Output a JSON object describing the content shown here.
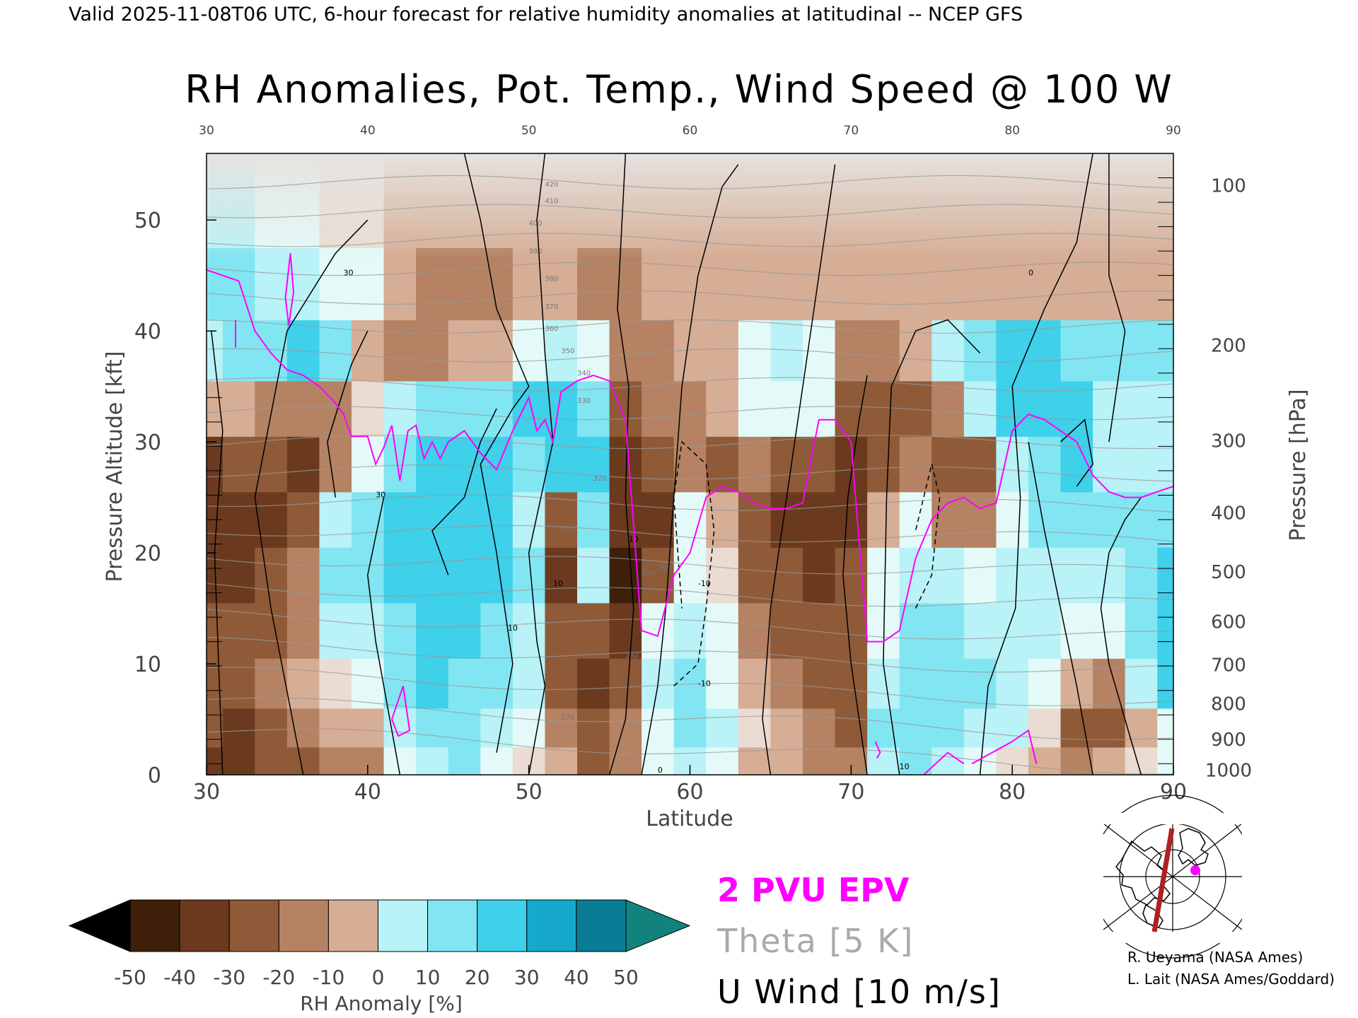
{
  "header": {
    "valid_line": "Valid 2025-11-08T06 UTC, 6-hour forecast for relative humidity anomalies at latitudinal -- NCEP GFS",
    "title": "RH Anomalies, Pot. Temp., Wind Speed @ 100 W"
  },
  "chart_data": {
    "type": "heatmap",
    "title": "RH Anomalies, Pot. Temp., Wind Speed @ 100 W",
    "xlabel": "Latitude",
    "ylabel_left": "Pressure Altitude [kft]",
    "ylabel_right": "Pressure [hPa]",
    "xlim": [
      30,
      90
    ],
    "ylim": [
      0,
      56
    ],
    "x_ticks_bottom": [
      30,
      40,
      50,
      60,
      70,
      80,
      90
    ],
    "x_ticks_top": [
      30,
      40,
      50,
      60,
      70,
      80,
      90
    ],
    "y_ticks_left": [
      0,
      10,
      20,
      30,
      40,
      50
    ],
    "y_ticks_right": [
      {
        "label": "100",
        "kft": 53.1
      },
      {
        "label": "200",
        "kft": 38.7
      },
      {
        "label": "300",
        "kft": 30.1
      },
      {
        "label": "400",
        "kft": 23.6
      },
      {
        "label": "500",
        "kft": 18.3
      },
      {
        "label": "600",
        "kft": 13.8
      },
      {
        "label": "700",
        "kft": 9.9
      },
      {
        "label": "800",
        "kft": 6.4
      },
      {
        "label": "900",
        "kft": 3.2
      },
      {
        "label": "1000",
        "kft": 0.4
      }
    ],
    "grid": false,
    "rh_anomaly_cells": {
      "lats": [
        30,
        32,
        34,
        36,
        38,
        40,
        42,
        44,
        46,
        48,
        50,
        52,
        54,
        56,
        58,
        60,
        62,
        64,
        66,
        68,
        70,
        72,
        74,
        76,
        78,
        80,
        82,
        84,
        86,
        88,
        90
      ],
      "levels_kft": [
        1,
        4,
        8,
        13,
        18,
        23,
        28,
        33,
        38,
        44,
        51
      ],
      "values_percent": [
        [
          -35,
          -38,
          -30,
          -25,
          -20,
          -15,
          10,
          25,
          30,
          15,
          5,
          -10,
          -25,
          -15,
          10,
          20,
          15,
          -5,
          -10,
          -15,
          -20,
          25,
          30,
          20,
          10,
          5,
          -5,
          -20,
          -10,
          5,
          10
        ],
        [
          -30,
          -35,
          -25,
          -15,
          -10,
          -5,
          20,
          35,
          35,
          25,
          15,
          -20,
          -30,
          -20,
          15,
          30,
          20,
          5,
          -5,
          -20,
          -25,
          30,
          35,
          30,
          25,
          20,
          5,
          -25,
          -30,
          -10,
          15
        ],
        [
          -25,
          -30,
          -20,
          -10,
          5,
          15,
          30,
          40,
          35,
          30,
          20,
          -25,
          -35,
          -30,
          20,
          30,
          15,
          -10,
          -20,
          -25,
          -25,
          25,
          35,
          35,
          30,
          25,
          15,
          -10,
          -20,
          20,
          40
        ],
        [
          -30,
          -30,
          -25,
          -15,
          20,
          25,
          35,
          40,
          40,
          35,
          25,
          -30,
          -25,
          -40,
          10,
          25,
          10,
          -20,
          -25,
          -30,
          -25,
          15,
          30,
          30,
          25,
          25,
          20,
          15,
          10,
          30,
          45
        ],
        [
          -35,
          -35,
          -30,
          -20,
          30,
          35,
          40,
          45,
          45,
          40,
          30,
          -35,
          25,
          -45,
          -30,
          15,
          5,
          -25,
          -30,
          -35,
          -30,
          10,
          25,
          20,
          15,
          20,
          25,
          25,
          25,
          35,
          40
        ],
        [
          -40,
          -40,
          -35,
          -30,
          20,
          30,
          40,
          45,
          45,
          40,
          25,
          -30,
          35,
          -40,
          -35,
          10,
          -10,
          -30,
          -35,
          -40,
          -35,
          -10,
          10,
          -15,
          -20,
          15,
          30,
          35,
          30,
          30,
          35
        ],
        [
          -35,
          -30,
          -30,
          -35,
          -20,
          15,
          35,
          40,
          45,
          40,
          30,
          40,
          40,
          -35,
          -30,
          -20,
          -25,
          -20,
          -25,
          -30,
          -35,
          -25,
          -20,
          -25,
          -25,
          20,
          35,
          40,
          20,
          20,
          25
        ],
        [
          -10,
          -10,
          -15,
          -20,
          -15,
          5,
          25,
          30,
          35,
          35,
          40,
          45,
          35,
          -25,
          -20,
          -15,
          -10,
          10,
          15,
          10,
          -30,
          -30,
          -25,
          -20,
          20,
          40,
          45,
          40,
          25,
          25,
          25
        ],
        [
          25,
          30,
          30,
          40,
          30,
          -10,
          -20,
          -15,
          -10,
          -5,
          15,
          20,
          15,
          -15,
          -15,
          -10,
          -5,
          10,
          20,
          15,
          -15,
          -20,
          -10,
          20,
          35,
          40,
          40,
          35,
          35,
          30,
          30
        ],
        [
          30,
          35,
          25,
          20,
          15,
          10,
          -10,
          -15,
          -20,
          -15,
          -10,
          -10,
          -15,
          -15,
          -10,
          -10,
          -10,
          -10,
          -10,
          -10,
          -10,
          -10,
          -10,
          -5,
          -5,
          -5,
          -5,
          -5,
          -5,
          -5,
          -5
        ],
        [
          25,
          20,
          15,
          10,
          5,
          0,
          -3,
          -5,
          -5,
          -5,
          -5,
          -5,
          -5,
          -5,
          -5,
          -3,
          -3,
          -3,
          -3,
          -3,
          -3,
          -3,
          -3,
          -3,
          -3,
          -3,
          -3,
          -3,
          -3,
          -3,
          -3
        ]
      ]
    },
    "theta_contour_labels": [
      "270",
      "280",
      "290",
      "300",
      "310",
      "320",
      "330",
      "340",
      "350",
      "360",
      "370",
      "380",
      "390",
      "400",
      "410",
      "420"
    ],
    "u_wind_contour_labels": [
      "-10",
      "0",
      "10",
      "30"
    ],
    "epv_2pvu": {
      "lats": [
        30,
        31,
        32,
        33,
        34,
        35,
        36,
        37,
        38,
        38.5,
        39,
        40,
        40.5,
        41,
        41.5,
        42,
        42.5,
        43,
        43.5,
        44,
        44.5,
        45,
        46,
        47,
        48,
        49,
        50,
        50.5,
        51,
        51.5,
        52,
        53,
        54,
        55,
        56,
        57,
        58,
        59,
        60,
        61,
        62,
        63,
        64,
        65,
        66,
        67,
        68,
        69,
        69.5,
        70,
        71,
        72,
        73,
        74,
        75,
        76,
        77,
        78,
        79,
        80,
        81,
        82,
        83,
        84,
        85,
        86,
        87,
        88,
        89,
        90
      ],
      "kft": [
        45.5,
        45,
        44.5,
        40,
        38,
        36.5,
        36,
        35,
        33.5,
        32.5,
        30.5,
        30.5,
        28,
        29.5,
        31.5,
        26.5,
        31,
        31.5,
        28.5,
        30,
        28.5,
        30,
        31,
        29,
        27.5,
        31,
        34,
        31,
        32,
        30,
        34.5,
        35.5,
        36,
        35.5,
        32,
        13,
        12.5,
        18,
        20,
        25,
        26,
        25.5,
        24.5,
        24,
        24,
        24.5,
        32,
        32,
        31,
        30,
        12,
        12,
        13,
        19.5,
        23,
        24.5,
        25,
        24,
        24.5,
        31,
        32.5,
        32,
        31,
        30,
        27,
        25.5,
        25,
        25,
        25.5,
        26
      ]
    },
    "legend": {
      "colorbar_label": "RH Anomaly [%]",
      "colorbar_ticks": [
        "-50",
        "-40",
        "-30",
        "-20",
        "-10",
        "0",
        "10",
        "20",
        "30",
        "40",
        "50"
      ],
      "series": [
        {
          "name": "2 PVU EPV",
          "color": "#ff00ff"
        },
        {
          "name": "Theta [5 K]",
          "color": "#aaaaaa"
        },
        {
          "name": "U Wind [10 m/s]",
          "color": "#000000"
        }
      ]
    }
  },
  "colors": {
    "epv": "#ff00ff",
    "theta": "#9a9a9a",
    "wind": "#000000",
    "rh_scale": [
      "#000000",
      "#3d1f0a",
      "#6b3a1e",
      "#8f5a38",
      "#b58263",
      "#d6ad95",
      "#eadcd2",
      "#e4faf8",
      "#b9f2f7",
      "#82e6f2",
      "#3fd0ea",
      "#16a9cc",
      "#0a7c95",
      "#12827c"
    ]
  },
  "inset_map": {
    "icons": [
      "polar-map-icon",
      "cross-section-line-icon",
      "location-dot-icon"
    ]
  },
  "credits": [
    "R. Ueyama (NASA Ames)",
    "L. Lait (NASA Ames/Goddard)"
  ]
}
